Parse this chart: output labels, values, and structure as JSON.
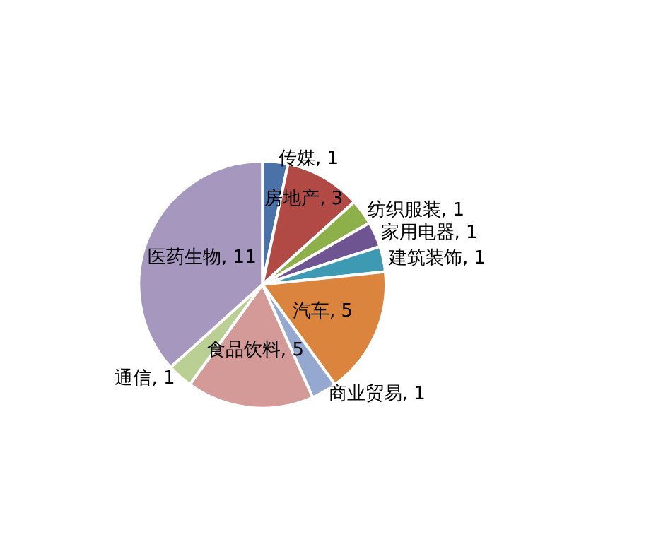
{
  "chart_data": {
    "type": "pie",
    "categories": [
      "传媒",
      "房地产",
      "纺织服装",
      "家用电器",
      "建筑装饰",
      "汽车",
      "商业贸易",
      "食品饮料",
      "通信",
      "医药生物"
    ],
    "values": [
      1,
      3,
      1,
      1,
      1,
      5,
      1,
      5,
      1,
      11
    ],
    "value_labels": [
      ", 1",
      ", 3",
      ", 1",
      ", 1",
      ", 1",
      ", 5",
      ", 1",
      ", 5",
      ", 1",
      ", 11"
    ],
    "colors": [
      "#4a71a8",
      "#b14a45",
      "#8eb04a",
      "#6e5490",
      "#3d9ab2",
      "#db843d",
      "#95a9d0",
      "#d39a98",
      "#b9cf93",
      "#a697bf"
    ],
    "legend": false
  }
}
